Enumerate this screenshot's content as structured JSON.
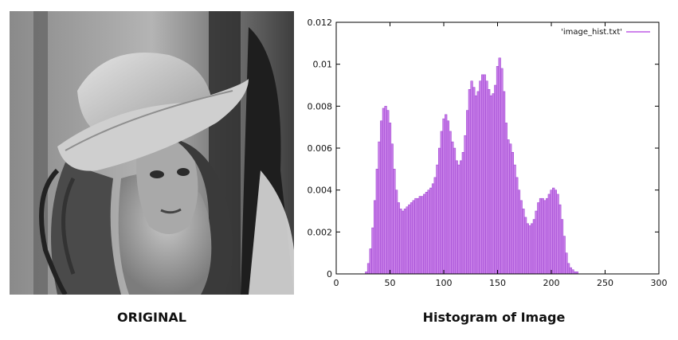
{
  "figure": {
    "left_caption": "ORIGINAL",
    "right_caption": "Histogram of Image",
    "photo_description_icon": "grayscale-portrait-photo"
  },
  "chart_data": {
    "type": "bar",
    "legend": {
      "label": "'image_hist.txt'",
      "placement": "top-right",
      "color": "#bf5ce6"
    },
    "bar_color": "#c77de8",
    "bar_edge_color": "#9b3fcf",
    "xlim": [
      0,
      300
    ],
    "ylim": [
      0,
      0.012
    ],
    "xticks": [
      0,
      50,
      100,
      150,
      200,
      250,
      300
    ],
    "yticks": [
      0,
      0.002,
      0.004,
      0.006,
      0.008,
      0.01,
      0.012
    ],
    "ytick_labels": [
      "0",
      "0.002",
      "0.004",
      "0.006",
      "0.008",
      "0.01",
      "0.012"
    ],
    "grid": false,
    "x": [
      25,
      28,
      30,
      32,
      34,
      36,
      38,
      40,
      42,
      44,
      46,
      48,
      50,
      52,
      54,
      56,
      58,
      60,
      62,
      64,
      66,
      68,
      70,
      72,
      74,
      76,
      78,
      80,
      82,
      84,
      86,
      88,
      90,
      92,
      94,
      96,
      98,
      100,
      102,
      104,
      106,
      108,
      110,
      112,
      114,
      116,
      118,
      120,
      122,
      124,
      126,
      128,
      130,
      132,
      134,
      136,
      138,
      140,
      142,
      144,
      146,
      148,
      150,
      152,
      154,
      156,
      158,
      160,
      162,
      164,
      166,
      168,
      170,
      172,
      174,
      176,
      178,
      180,
      182,
      184,
      186,
      188,
      190,
      192,
      194,
      196,
      198,
      200,
      202,
      204,
      206,
      208,
      210,
      212,
      214,
      216,
      218,
      220,
      222,
      224,
      226,
      228,
      230
    ],
    "values": [
      0,
      0.0001,
      0.0005,
      0.0012,
      0.0022,
      0.0035,
      0.005,
      0.0063,
      0.0073,
      0.0079,
      0.008,
      0.0078,
      0.0072,
      0.0062,
      0.005,
      0.004,
      0.0034,
      0.0031,
      0.003,
      0.0031,
      0.0032,
      0.0033,
      0.0034,
      0.0035,
      0.0036,
      0.0036,
      0.0037,
      0.0037,
      0.0038,
      0.0039,
      0.004,
      0.0041,
      0.0043,
      0.0046,
      0.0052,
      0.006,
      0.0068,
      0.0074,
      0.0076,
      0.0073,
      0.0068,
      0.0063,
      0.006,
      0.0054,
      0.0052,
      0.0054,
      0.0058,
      0.0066,
      0.0078,
      0.0088,
      0.0092,
      0.0089,
      0.0085,
      0.0087,
      0.0092,
      0.0095,
      0.0095,
      0.0092,
      0.0088,
      0.0085,
      0.0086,
      0.009,
      0.0099,
      0.0103,
      0.0098,
      0.0087,
      0.0072,
      0.0064,
      0.0062,
      0.0058,
      0.0052,
      0.0046,
      0.004,
      0.0035,
      0.0031,
      0.0027,
      0.0024,
      0.0023,
      0.0024,
      0.0026,
      0.003,
      0.0034,
      0.0036,
      0.0036,
      0.0035,
      0.0036,
      0.0038,
      0.004,
      0.0041,
      0.004,
      0.0038,
      0.0033,
      0.0026,
      0.0018,
      0.001,
      0.0005,
      0.0003,
      0.0002,
      0.0001,
      0.0001,
      0,
      0,
      0
    ]
  }
}
